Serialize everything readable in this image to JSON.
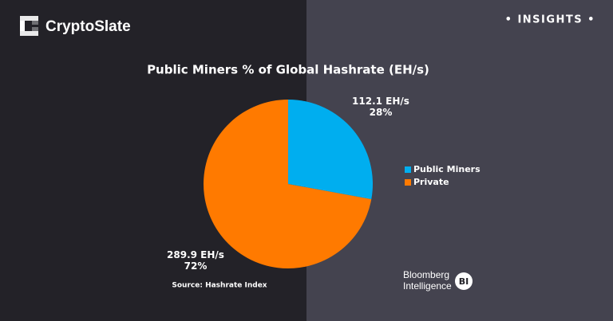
{
  "chart_data": {
    "type": "pie",
    "title": "Public Miners % of Global Hashrate (EH/s)",
    "categories": [
      "Public Miners",
      "Private"
    ],
    "values": [
      112.1,
      289.9
    ],
    "value_labels": [
      "112.1 EH/s",
      "289.9 EH/s"
    ],
    "percent_labels": [
      "28%",
      "72%"
    ],
    "colors": [
      "#00aeef",
      "#ff7a00"
    ],
    "legend": "right",
    "source": "Source: Hashrate Index"
  },
  "brand": {
    "name": "CryptoSlate",
    "section": "• INSIGHTS •"
  },
  "partner": {
    "line1": "Bloomberg",
    "line2": "Intelligence",
    "badge": "BI"
  }
}
